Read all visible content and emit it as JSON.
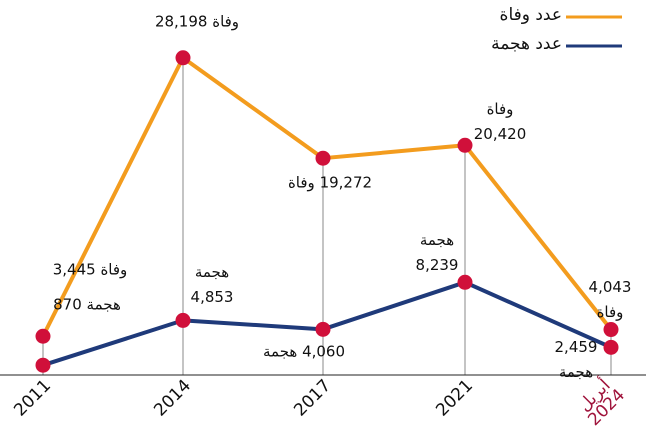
{
  "chart_data": {
    "type": "line",
    "categories": [
      "2011",
      "2014",
      "2017",
      "2021",
      "أبريل\n2024"
    ],
    "series": [
      {
        "name": "عدد وفاة",
        "color": "#f39c1e",
        "values": [
          3445,
          28198,
          19272,
          20420,
          4043
        ],
        "value_labels": [
          "3,445 وفاة",
          "28,198 وفاة",
          "19,272 وفاة",
          "وفاة\n20,420",
          "4,043 وفاة"
        ]
      },
      {
        "name": "عدد هجمة",
        "color": "#1f3a7a",
        "values": [
          870,
          4853,
          4060,
          8239,
          2459
        ],
        "value_labels": [
          "870 هجمة",
          "هجمة\n4,853",
          "4,060 هجمة",
          "هجمة\n8,239",
          "2,459 هجمة"
        ]
      }
    ],
    "marker_color": "#d0103a",
    "highlight_color": "#a0143c",
    "ylim": [
      0,
      30000
    ]
  }
}
